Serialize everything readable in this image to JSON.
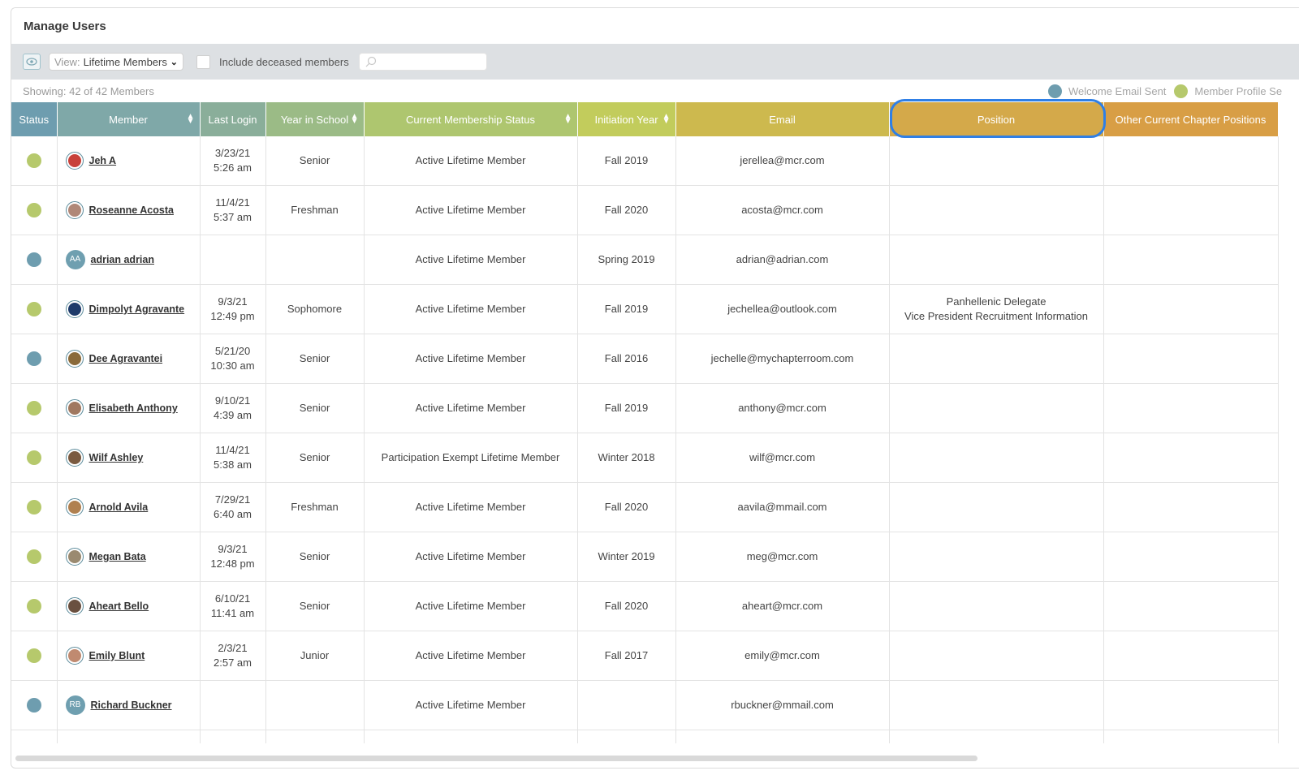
{
  "title": "Manage Users",
  "toolbar": {
    "view_prefix": "View:",
    "view_value": "Lifetime Members",
    "include_deceased_label": "Include deceased members",
    "search_placeholder": ""
  },
  "showing": "Showing: 42 of 42 Members",
  "legend": [
    {
      "label": "Welcome Email Sent",
      "color": "#6e9daf"
    },
    {
      "label": "Member Profile Se",
      "color": "#b6c96c"
    }
  ],
  "columns": [
    {
      "label": "Status",
      "bg": "#6e9daf",
      "sortable": false
    },
    {
      "label": "Member",
      "bg": "#7fa8a8",
      "sortable": true
    },
    {
      "label": "Last Login",
      "bg": "#8aae9a",
      "sortable": false
    },
    {
      "label": "Year in School",
      "bg": "#9bbb86",
      "sortable": true
    },
    {
      "label": "Current Membership Status",
      "bg": "#aec66f",
      "sortable": true
    },
    {
      "label": "Initiation Year",
      "bg": "#c2cc5c",
      "sortable": true
    },
    {
      "label": "Email",
      "bg": "#cdb94e",
      "sortable": false
    },
    {
      "label": "Position",
      "bg": "#d4a94a",
      "sortable": false
    },
    {
      "label": "Other Current Chapter Positions",
      "bg": "#d89e45",
      "sortable": false
    }
  ],
  "rows": [
    {
      "status": "green",
      "avatar": "photo",
      "avatar_color": "#c8413a",
      "name": "Jeh A",
      "login_date": "3/23/21",
      "login_time": "5:26 am",
      "year": "Senior",
      "membership": "Active Lifetime Member",
      "initiation": "Fall 2019",
      "email": "jerellea@mcr.com",
      "position": [],
      "other": ""
    },
    {
      "status": "green",
      "avatar": "photo",
      "avatar_color": "#b08878",
      "name": "Roseanne Acosta",
      "login_date": "11/4/21",
      "login_time": "5:37 am",
      "year": "Freshman",
      "membership": "Active Lifetime Member",
      "initiation": "Fall 2020",
      "email": "acosta@mcr.com",
      "position": [],
      "other": ""
    },
    {
      "status": "blue",
      "avatar": "initials",
      "initials": "AA",
      "name": "adrian adrian",
      "login_date": "",
      "login_time": "",
      "year": "",
      "membership": "Active Lifetime Member",
      "initiation": "Spring 2019",
      "email": "adrian@adrian.com",
      "position": [],
      "other": ""
    },
    {
      "status": "green",
      "avatar": "photo",
      "avatar_color": "#1e3a6a",
      "name": "Dimpolyt Agravante",
      "login_date": "9/3/21",
      "login_time": "12:49 pm",
      "year": "Sophomore",
      "membership": "Active Lifetime Member",
      "initiation": "Fall 2019",
      "email": "jechellea@outlook.com",
      "position": [
        "Panhellenic Delegate",
        "Vice President Recruitment Information"
      ],
      "other": ""
    },
    {
      "status": "blue",
      "avatar": "photo",
      "avatar_color": "#8a6a3a",
      "name": "Dee Agravantei",
      "login_date": "5/21/20",
      "login_time": "10:30 am",
      "year": "Senior",
      "membership": "Active Lifetime Member",
      "initiation": "Fall 2016",
      "email": "jechelle@mychapterroom.com",
      "position": [],
      "other": ""
    },
    {
      "status": "green",
      "avatar": "photo",
      "avatar_color": "#a07860",
      "name": "Elisabeth Anthony",
      "login_date": "9/10/21",
      "login_time": "4:39 am",
      "year": "Senior",
      "membership": "Active Lifetime Member",
      "initiation": "Fall 2019",
      "email": "anthony@mcr.com",
      "position": [],
      "other": ""
    },
    {
      "status": "green",
      "avatar": "photo",
      "avatar_color": "#7a5a40",
      "name": "Wilf Ashley",
      "login_date": "11/4/21",
      "login_time": "5:38 am",
      "year": "Senior",
      "membership": "Participation Exempt Lifetime Member",
      "initiation": "Winter 2018",
      "email": "wilf@mcr.com",
      "position": [],
      "other": ""
    },
    {
      "status": "green",
      "avatar": "photo",
      "avatar_color": "#b08050",
      "name": "Arnold Avila",
      "login_date": "7/29/21",
      "login_time": "6:40 am",
      "year": "Freshman",
      "membership": "Active Lifetime Member",
      "initiation": "Fall 2020",
      "email": "aavila@mmail.com",
      "position": [],
      "other": ""
    },
    {
      "status": "green",
      "avatar": "photo",
      "avatar_color": "#9a8a70",
      "name": "Megan Bata",
      "login_date": "9/3/21",
      "login_time": "12:48 pm",
      "year": "Senior",
      "membership": "Active Lifetime Member",
      "initiation": "Winter 2019",
      "email": "meg@mcr.com",
      "position": [],
      "other": ""
    },
    {
      "status": "green",
      "avatar": "photo",
      "avatar_color": "#6a5040",
      "name": "Aheart Bello",
      "login_date": "6/10/21",
      "login_time": "11:41 am",
      "year": "Senior",
      "membership": "Active Lifetime Member",
      "initiation": "Fall 2020",
      "email": "aheart@mcr.com",
      "position": [],
      "other": ""
    },
    {
      "status": "green",
      "avatar": "photo",
      "avatar_color": "#c08a70",
      "name": "Emily Blunt",
      "login_date": "2/3/21",
      "login_time": "2:57 am",
      "year": "Junior",
      "membership": "Active Lifetime Member",
      "initiation": "Fall 2017",
      "email": "emily@mcr.com",
      "position": [],
      "other": ""
    },
    {
      "status": "blue",
      "avatar": "initials",
      "initials": "RB",
      "name": "Richard Buckner",
      "login_date": "",
      "login_time": "",
      "year": "",
      "membership": "Active Lifetime Member",
      "initiation": "",
      "email": "rbuckner@mmail.com",
      "position": [],
      "other": ""
    }
  ],
  "colors": {
    "green": "#b6c96c",
    "blue": "#6e9daf",
    "focus": "#2f7fe6"
  }
}
